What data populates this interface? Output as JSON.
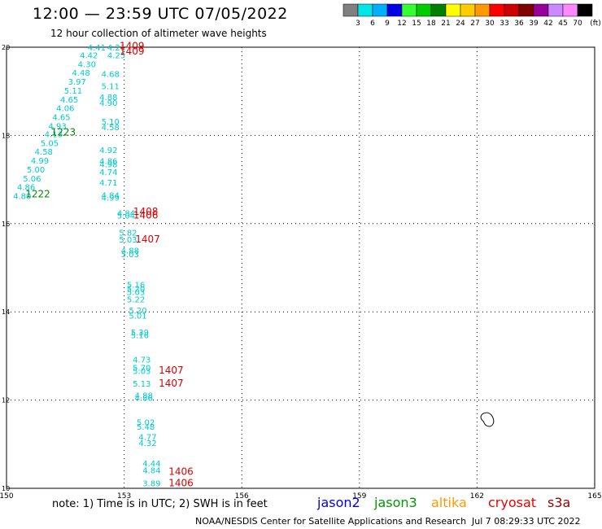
{
  "header": {
    "title": "12:00 — 23:59 UTC 07/05/2022",
    "subtitle": "12 hour collection of altimeter wave heights"
  },
  "colorbar": {
    "labels": [
      "3",
      "6",
      "9",
      "12",
      "15",
      "18",
      "21",
      "24",
      "27",
      "30",
      "33",
      "36",
      "39",
      "42",
      "45",
      "70"
    ],
    "unit": "(ft)",
    "colors": [
      "#808080",
      "#00e5e5",
      "#00b0ff",
      "#0000e5",
      "#33ff33",
      "#00cc00",
      "#008000",
      "#ffff00",
      "#ffcc00",
      "#ff9900",
      "#ff0000",
      "#cc0000",
      "#800000",
      "#990099",
      "#cc88ff",
      "#ff88ff",
      "#000000"
    ]
  },
  "axes": {
    "x_ticks": [
      "150",
      "153",
      "156",
      "159",
      "162",
      "165"
    ],
    "y_ticks": [
      "20",
      "18",
      "16",
      "14",
      "12",
      "10"
    ]
  },
  "observations": [
    {
      "lon": 152.3,
      "lat": 19.93,
      "label": "4.41",
      "color": "#00cccc"
    },
    {
      "lon": 152.1,
      "lat": 19.75,
      "label": "4.42",
      "color": "#00cccc"
    },
    {
      "lon": 152.05,
      "lat": 19.55,
      "label": "4.30",
      "color": "#00cccc"
    },
    {
      "lon": 151.9,
      "lat": 19.35,
      "label": "4.48",
      "color": "#00cccc"
    },
    {
      "lon": 151.8,
      "lat": 19.15,
      "label": "3.97",
      "color": "#00cccc"
    },
    {
      "lon": 151.7,
      "lat": 18.95,
      "label": "5.11",
      "color": "#00cccc"
    },
    {
      "lon": 151.6,
      "lat": 18.75,
      "label": "4.65",
      "color": "#00cccc"
    },
    {
      "lon": 151.5,
      "lat": 18.55,
      "label": "4.06",
      "color": "#00cccc"
    },
    {
      "lon": 151.4,
      "lat": 18.35,
      "label": "4.65",
      "color": "#00cccc"
    },
    {
      "lon": 151.3,
      "lat": 18.15,
      "label": "4.93",
      "color": "#00cccc"
    },
    {
      "lon": 151.2,
      "lat": 17.96,
      "label": "4.13",
      "color": "#00cccc"
    },
    {
      "lon": 151.1,
      "lat": 17.76,
      "label": "5.05",
      "color": "#00cccc"
    },
    {
      "lon": 150.95,
      "lat": 17.56,
      "label": "4.58",
      "color": "#00cccc"
    },
    {
      "lon": 150.85,
      "lat": 17.36,
      "label": "4.99",
      "color": "#00cccc"
    },
    {
      "lon": 150.75,
      "lat": 17.16,
      "label": "5.00",
      "color": "#00cccc"
    },
    {
      "lon": 150.65,
      "lat": 16.96,
      "label": "5.06",
      "color": "#00cccc"
    },
    {
      "lon": 150.5,
      "lat": 16.76,
      "label": "4.86",
      "color": "#00cccc"
    },
    {
      "lon": 150.4,
      "lat": 16.56,
      "label": "4.80",
      "color": "#00cccc"
    },
    {
      "lon": 152.8,
      "lat": 19.93,
      "label": "4.21",
      "color": "#00cccc"
    },
    {
      "lon": 152.8,
      "lat": 19.75,
      "label": "4.25",
      "color": "#00cccc"
    },
    {
      "lon": 152.65,
      "lat": 19.33,
      "label": "4.68",
      "color": "#00cccc"
    },
    {
      "lon": 152.65,
      "lat": 19.05,
      "label": "5.11",
      "color": "#00cccc"
    },
    {
      "lon": 152.6,
      "lat": 18.8,
      "label": "4.88",
      "color": "#00cccc"
    },
    {
      "lon": 152.6,
      "lat": 18.67,
      "label": "4.90",
      "color": "#00cccc"
    },
    {
      "lon": 152.65,
      "lat": 18.25,
      "label": "5.10",
      "color": "#00cccc"
    },
    {
      "lon": 152.65,
      "lat": 18.12,
      "label": "4.58",
      "color": "#00cccc"
    },
    {
      "lon": 152.6,
      "lat": 17.6,
      "label": "4.92",
      "color": "#00cccc"
    },
    {
      "lon": 152.6,
      "lat": 17.35,
      "label": "4.86",
      "color": "#00cccc"
    },
    {
      "lon": 152.6,
      "lat": 17.28,
      "label": "4.98",
      "color": "#00cccc"
    },
    {
      "lon": 152.6,
      "lat": 17.1,
      "label": "4.74",
      "color": "#00cccc"
    },
    {
      "lon": 152.6,
      "lat": 16.86,
      "label": "4.71",
      "color": "#00cccc"
    },
    {
      "lon": 152.65,
      "lat": 16.58,
      "label": "4.84",
      "color": "#00cccc"
    },
    {
      "lon": 152.65,
      "lat": 16.52,
      "label": "4.99",
      "color": "#00cccc"
    },
    {
      "lon": 153.05,
      "lat": 16.17,
      "label": "4.84",
      "color": "#00cccc"
    },
    {
      "lon": 153.05,
      "lat": 16.12,
      "label": "5.04",
      "color": "#00cccc"
    },
    {
      "lon": 153.1,
      "lat": 15.73,
      "label": "5.82",
      "color": "#00cccc"
    },
    {
      "lon": 153.1,
      "lat": 15.57,
      "label": "5.03",
      "color": "#00cccc"
    },
    {
      "lon": 153.15,
      "lat": 15.32,
      "label": "4.88",
      "color": "#00cccc"
    },
    {
      "lon": 153.15,
      "lat": 15.24,
      "label": "5.03",
      "color": "#00cccc"
    },
    {
      "lon": 153.3,
      "lat": 14.55,
      "label": "5.16",
      "color": "#00cccc"
    },
    {
      "lon": 153.3,
      "lat": 14.46,
      "label": "5.20",
      "color": "#00cccc"
    },
    {
      "lon": 153.3,
      "lat": 14.38,
      "label": "5.03",
      "color": "#00cccc"
    },
    {
      "lon": 153.3,
      "lat": 14.22,
      "label": "5.22",
      "color": "#00cccc"
    },
    {
      "lon": 153.35,
      "lat": 13.97,
      "label": "5.20",
      "color": "#00cccc"
    },
    {
      "lon": 153.35,
      "lat": 13.85,
      "label": "5.01",
      "color": "#00cccc"
    },
    {
      "lon": 153.4,
      "lat": 13.47,
      "label": "5.39",
      "color": "#00cccc"
    },
    {
      "lon": 153.4,
      "lat": 13.4,
      "label": "5.16",
      "color": "#00cccc"
    },
    {
      "lon": 153.45,
      "lat": 12.85,
      "label": "4.73",
      "color": "#00cccc"
    },
    {
      "lon": 153.45,
      "lat": 12.67,
      "label": "5.70",
      "color": "#00cccc"
    },
    {
      "lon": 153.45,
      "lat": 12.59,
      "label": "5.03",
      "color": "#00cccc"
    },
    {
      "lon": 153.45,
      "lat": 12.31,
      "label": "5.13",
      "color": "#00cccc"
    },
    {
      "lon": 153.5,
      "lat": 12.04,
      "label": "4.88",
      "color": "#00cccc"
    },
    {
      "lon": 153.5,
      "lat": 11.98,
      "label": "4.86",
      "color": "#00cccc"
    },
    {
      "lon": 153.55,
      "lat": 11.43,
      "label": "5.02",
      "color": "#00cccc"
    },
    {
      "lon": 153.55,
      "lat": 11.33,
      "label": "5.48",
      "color": "#00cccc"
    },
    {
      "lon": 153.6,
      "lat": 11.1,
      "label": "4.77",
      "color": "#00cccc"
    },
    {
      "lon": 153.6,
      "lat": 10.96,
      "label": "4.32",
      "color": "#00cccc"
    },
    {
      "lon": 153.7,
      "lat": 10.5,
      "label": "4.44",
      "color": "#00cccc"
    },
    {
      "lon": 153.7,
      "lat": 10.34,
      "label": "4.84",
      "color": "#00cccc"
    },
    {
      "lon": 153.7,
      "lat": 10.05,
      "label": "3.89",
      "color": "#00cccc"
    }
  ],
  "track_labels": [
    {
      "lon": 151.45,
      "lat": 18.0,
      "label": "1223",
      "color": "#008800"
    },
    {
      "lon": 150.8,
      "lat": 16.6,
      "label": "1222",
      "color": "#008800"
    },
    {
      "lon": 153.2,
      "lat": 19.95,
      "label": "1409",
      "color": "#dd0000"
    },
    {
      "lon": 153.2,
      "lat": 19.83,
      "label": "1409",
      "color": "#dd0000"
    },
    {
      "lon": 153.55,
      "lat": 16.2,
      "label": "1408",
      "color": "#dd0000"
    },
    {
      "lon": 153.55,
      "lat": 16.12,
      "label": "1406",
      "color": "#dd0000"
    },
    {
      "lon": 153.6,
      "lat": 15.57,
      "label": "1407",
      "color": "#dd0000"
    },
    {
      "lon": 154.2,
      "lat": 12.6,
      "label": "1407",
      "color": "#dd0000"
    },
    {
      "lon": 154.2,
      "lat": 12.31,
      "label": "1407",
      "color": "#dd0000"
    },
    {
      "lon": 154.45,
      "lat": 10.3,
      "label": "1406",
      "color": "#dd0000"
    },
    {
      "lon": 154.45,
      "lat": 10.05,
      "label": "1406",
      "color": "#dd0000"
    }
  ],
  "island": {
    "lon": 162.25,
    "lat": 11.55
  },
  "footer": {
    "note": "note:  1) Time is in UTC;  2) SWH is in feet",
    "satellites": [
      {
        "name": "jason2",
        "color": "#0000ee"
      },
      {
        "name": "jason3",
        "color": "#009900"
      },
      {
        "name": "altika",
        "color": "#ff9900"
      },
      {
        "name": "cryosat",
        "color": "#ee0000"
      },
      {
        "name": "s3a",
        "color": "#990000"
      }
    ],
    "credit": "NOAA/NESDIS Center for Satellite Applications and Research",
    "generated": "Jul  7 08:29:33 UTC 2022"
  }
}
